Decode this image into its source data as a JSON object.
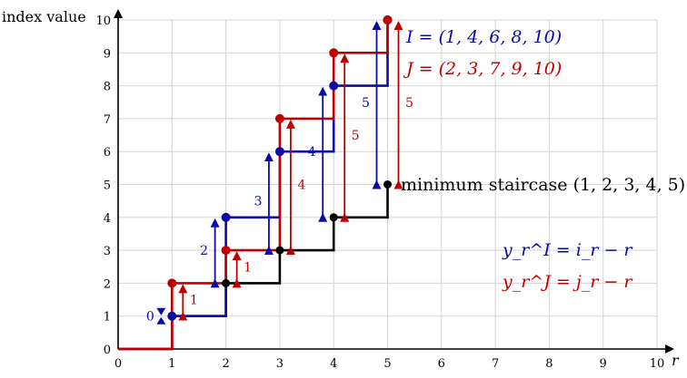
{
  "axes": {
    "y_label": "index value",
    "x_label": "r",
    "x_ticks": [
      "0",
      "1",
      "2",
      "3",
      "4",
      "5",
      "6",
      "7",
      "8",
      "9",
      "10"
    ],
    "y_ticks": [
      "0",
      "1",
      "2",
      "3",
      "4",
      "5",
      "6",
      "7",
      "8",
      "9",
      "10"
    ]
  },
  "sets": {
    "I": {
      "label": "I = (1, 4, 6, 8, 10)",
      "values": [
        1,
        4,
        6,
        8,
        10
      ],
      "color": "#0a0aa8"
    },
    "J": {
      "label": "J = (2, 3, 7, 9, 10)",
      "values": [
        2,
        3,
        7,
        9,
        10
      ],
      "color": "#c00000"
    },
    "min": {
      "label": "minimum staircase (1, 2, 3, 4, 5)",
      "values": [
        1,
        2,
        3,
        4,
        5
      ],
      "color": "#000000"
    }
  },
  "gap_labels": {
    "I": [
      "0",
      "2",
      "3",
      "4",
      "5"
    ],
    "J": [
      "1",
      "1",
      "4",
      "5",
      "5"
    ]
  },
  "formulas": {
    "yI": "y_r^I = i_r − r",
    "yJ": "y_r^J = j_r − r"
  }
}
